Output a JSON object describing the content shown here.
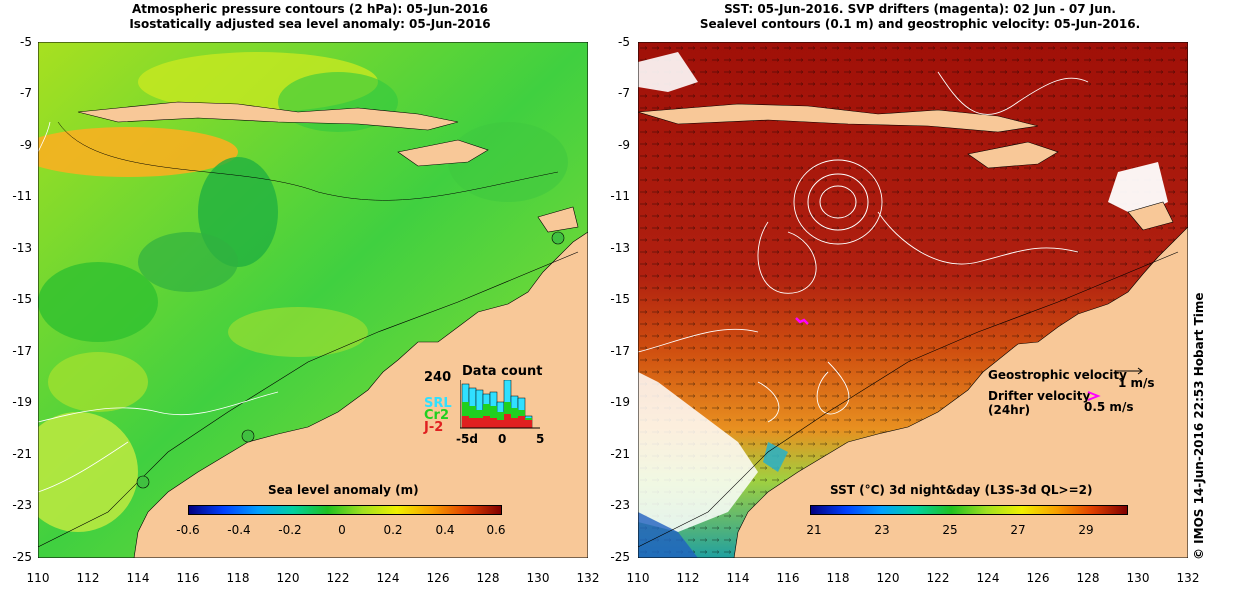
{
  "left_panel": {
    "title_line1": "Atmospheric pressure contours (2 hPa): 05-Jun-2016",
    "title_line2": "Isostatically adjusted sea level anomaly: 05-Jun-2016",
    "y_ticks": [
      "-5",
      "-7",
      "-9",
      "-11",
      "-13",
      "-15",
      "-17",
      "-19",
      "-21",
      "-23",
      "-25"
    ],
    "x_ticks": [
      "110",
      "112",
      "114",
      "116",
      "118",
      "120",
      "122",
      "124",
      "126",
      "128",
      "130",
      "132"
    ],
    "colorbar_title": "Sea level anomaly (m)",
    "colorbar_ticks": [
      "-0.6",
      "-0.4",
      "-0.2",
      "0",
      "0.2",
      "0.4",
      "0.6"
    ],
    "data_count": {
      "title": "Data count",
      "max_label": "240",
      "x_ticks": [
        "-5d",
        "0",
        "5"
      ],
      "legend": [
        "SRL",
        "Cr2",
        "J-2"
      ],
      "legend_colors": [
        "#30e0ff",
        "#20d020",
        "#e02020"
      ]
    }
  },
  "right_panel": {
    "title_line1": "SST: 05-Jun-2016. SVP drifters (magenta): 02 Jun - 07 Jun.",
    "title_line2": "Sealevel contours (0.1 m) and geostrophic velocity: 05-Jun-2016.",
    "y_ticks": [
      "-5",
      "-7",
      "-9",
      "-11",
      "-13",
      "-15",
      "-17",
      "-19",
      "-21",
      "-23",
      "-25"
    ],
    "x_ticks": [
      "110",
      "112",
      "114",
      "116",
      "118",
      "120",
      "122",
      "124",
      "126",
      "128",
      "130",
      "132"
    ],
    "colorbar_title": "SST (°C) 3d night&day (L3S-3d QL>=2)",
    "colorbar_ticks": [
      "21",
      "23",
      "25",
      "27",
      "29"
    ],
    "legend_geo": "Geostrophic velocity",
    "legend_geo_scale": "1 m/s",
    "legend_drifter": "Drifter velocity",
    "legend_drifter_sub": "(24hr)",
    "legend_drifter_scale": "0.5 m/s"
  },
  "credit": "© IMOS 14-Jun-2016 22:53 Hobart Time",
  "colors": {
    "land": "#f8c898",
    "magenta": "#ff00ff"
  }
}
